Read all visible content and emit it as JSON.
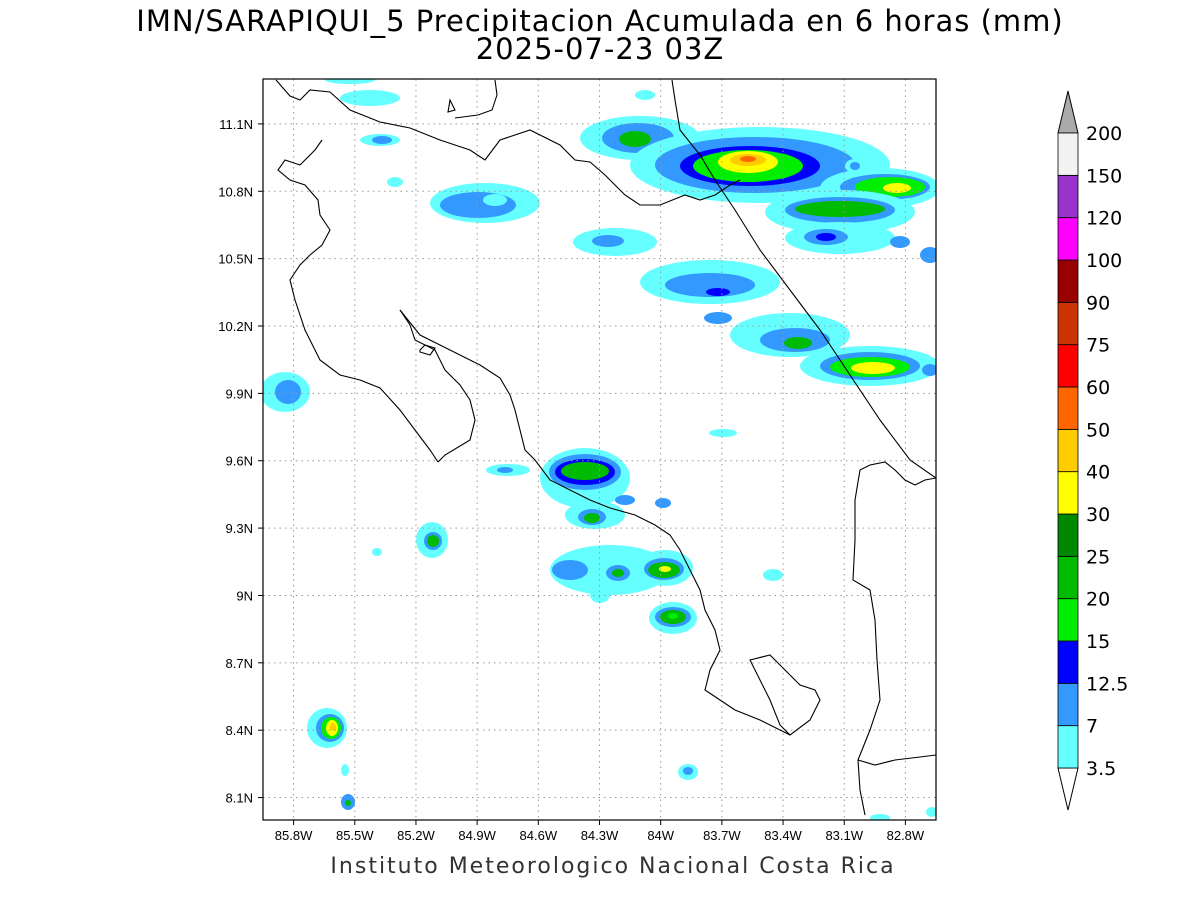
{
  "title": {
    "line1": "IMN/SARAPIQUI_5 Precipitacion Acumulada en 6 horas (mm)",
    "line2": "2025-07-23 03Z"
  },
  "footer": "Instituto Meteorologico Nacional Costa Rica",
  "chart_data": {
    "type": "heatmap",
    "variable": "Precipitacion Acumulada en 6 horas",
    "units": "mm",
    "valid_time": "2025-07-23 03Z",
    "x_axis": {
      "range": [
        -85.95,
        -82.65
      ],
      "ticks": [
        -85.8,
        -85.5,
        -85.2,
        -84.9,
        -84.6,
        -84.3,
        -84.0,
        -83.7,
        -83.4,
        -83.1,
        -82.8
      ],
      "tick_labels": [
        "85.8W",
        "85.5W",
        "85.2W",
        "84.9W",
        "84.6W",
        "84.3W",
        "84W",
        "83.7W",
        "83.4W",
        "83.1W",
        "82.8W"
      ]
    },
    "y_axis": {
      "range": [
        8.0,
        11.3
      ],
      "ticks": [
        8.1,
        8.4,
        8.7,
        9.0,
        9.3,
        9.6,
        9.9,
        10.2,
        10.5,
        10.8,
        11.1
      ],
      "tick_labels": [
        "8.1N",
        "8.4N",
        "8.7N",
        "9N",
        "9.3N",
        "9.6N",
        "9.9N",
        "10.2N",
        "10.5N",
        "10.8N",
        "11.1N"
      ]
    },
    "grid": true,
    "colorbar": {
      "levels": [
        "3.5",
        "7",
        "12.5",
        "15",
        "20",
        "25",
        "30",
        "40",
        "50",
        "60",
        "75",
        "90",
        "100",
        "120",
        "150",
        "200"
      ],
      "colors": [
        "#66ffff",
        "#3399ff",
        "#0000ff",
        "#00ee00",
        "#00bb00",
        "#008800",
        "#ffff00",
        "#ffcc00",
        "#ff6600",
        "#ff0000",
        "#cc3300",
        "#990000",
        "#ff00ff",
        "#9933cc",
        "#f2f2f2"
      ],
      "overflow_color": "#aaaaaa"
    },
    "cells": [
      {
        "lon": -84.05,
        "lat": 11.07,
        "v": 20
      },
      {
        "lon": -83.5,
        "lat": 10.94,
        "v": 50
      },
      {
        "lon": -83.7,
        "lat": 10.97,
        "v": 20
      },
      {
        "lon": -83.25,
        "lat": 10.96,
        "v": 15
      },
      {
        "lon": -82.8,
        "lat": 10.82,
        "v": 40
      },
      {
        "lon": -83.0,
        "lat": 10.74,
        "v": 25
      },
      {
        "lon": -83.1,
        "lat": 10.6,
        "v": 15
      },
      {
        "lon": -82.9,
        "lat": 10.6,
        "v": 12.5
      },
      {
        "lon": -84.25,
        "lat": 10.57,
        "v": 12.5
      },
      {
        "lon": -83.8,
        "lat": 10.38,
        "v": 12.5
      },
      {
        "lon": -83.8,
        "lat": 10.45,
        "v": 7
      },
      {
        "lon": -83.3,
        "lat": 10.25,
        "v": 7
      },
      {
        "lon": -83.15,
        "lat": 10.11,
        "v": 20
      },
      {
        "lon": -82.85,
        "lat": 10.03,
        "v": 40
      },
      {
        "lon": -84.75,
        "lat": 10.78,
        "v": 7
      },
      {
        "lon": -85.4,
        "lat": 11.05,
        "v": 7
      },
      {
        "lon": -84.3,
        "lat": 9.57,
        "v": 20
      },
      {
        "lon": -84.3,
        "lat": 9.35,
        "v": 20
      },
      {
        "lon": -84.1,
        "lat": 9.4,
        "v": 7
      },
      {
        "lon": -83.95,
        "lat": 9.1,
        "v": 25
      },
      {
        "lon": -84.15,
        "lat": 9.1,
        "v": 15
      },
      {
        "lon": -83.9,
        "lat": 8.88,
        "v": 20
      },
      {
        "lon": -85.1,
        "lat": 9.23,
        "v": 20
      },
      {
        "lon": -85.65,
        "lat": 8.41,
        "v": 40
      },
      {
        "lon": -85.85,
        "lat": 9.97,
        "v": 7
      },
      {
        "lon": -83.8,
        "lat": 8.25,
        "v": 7
      }
    ]
  }
}
